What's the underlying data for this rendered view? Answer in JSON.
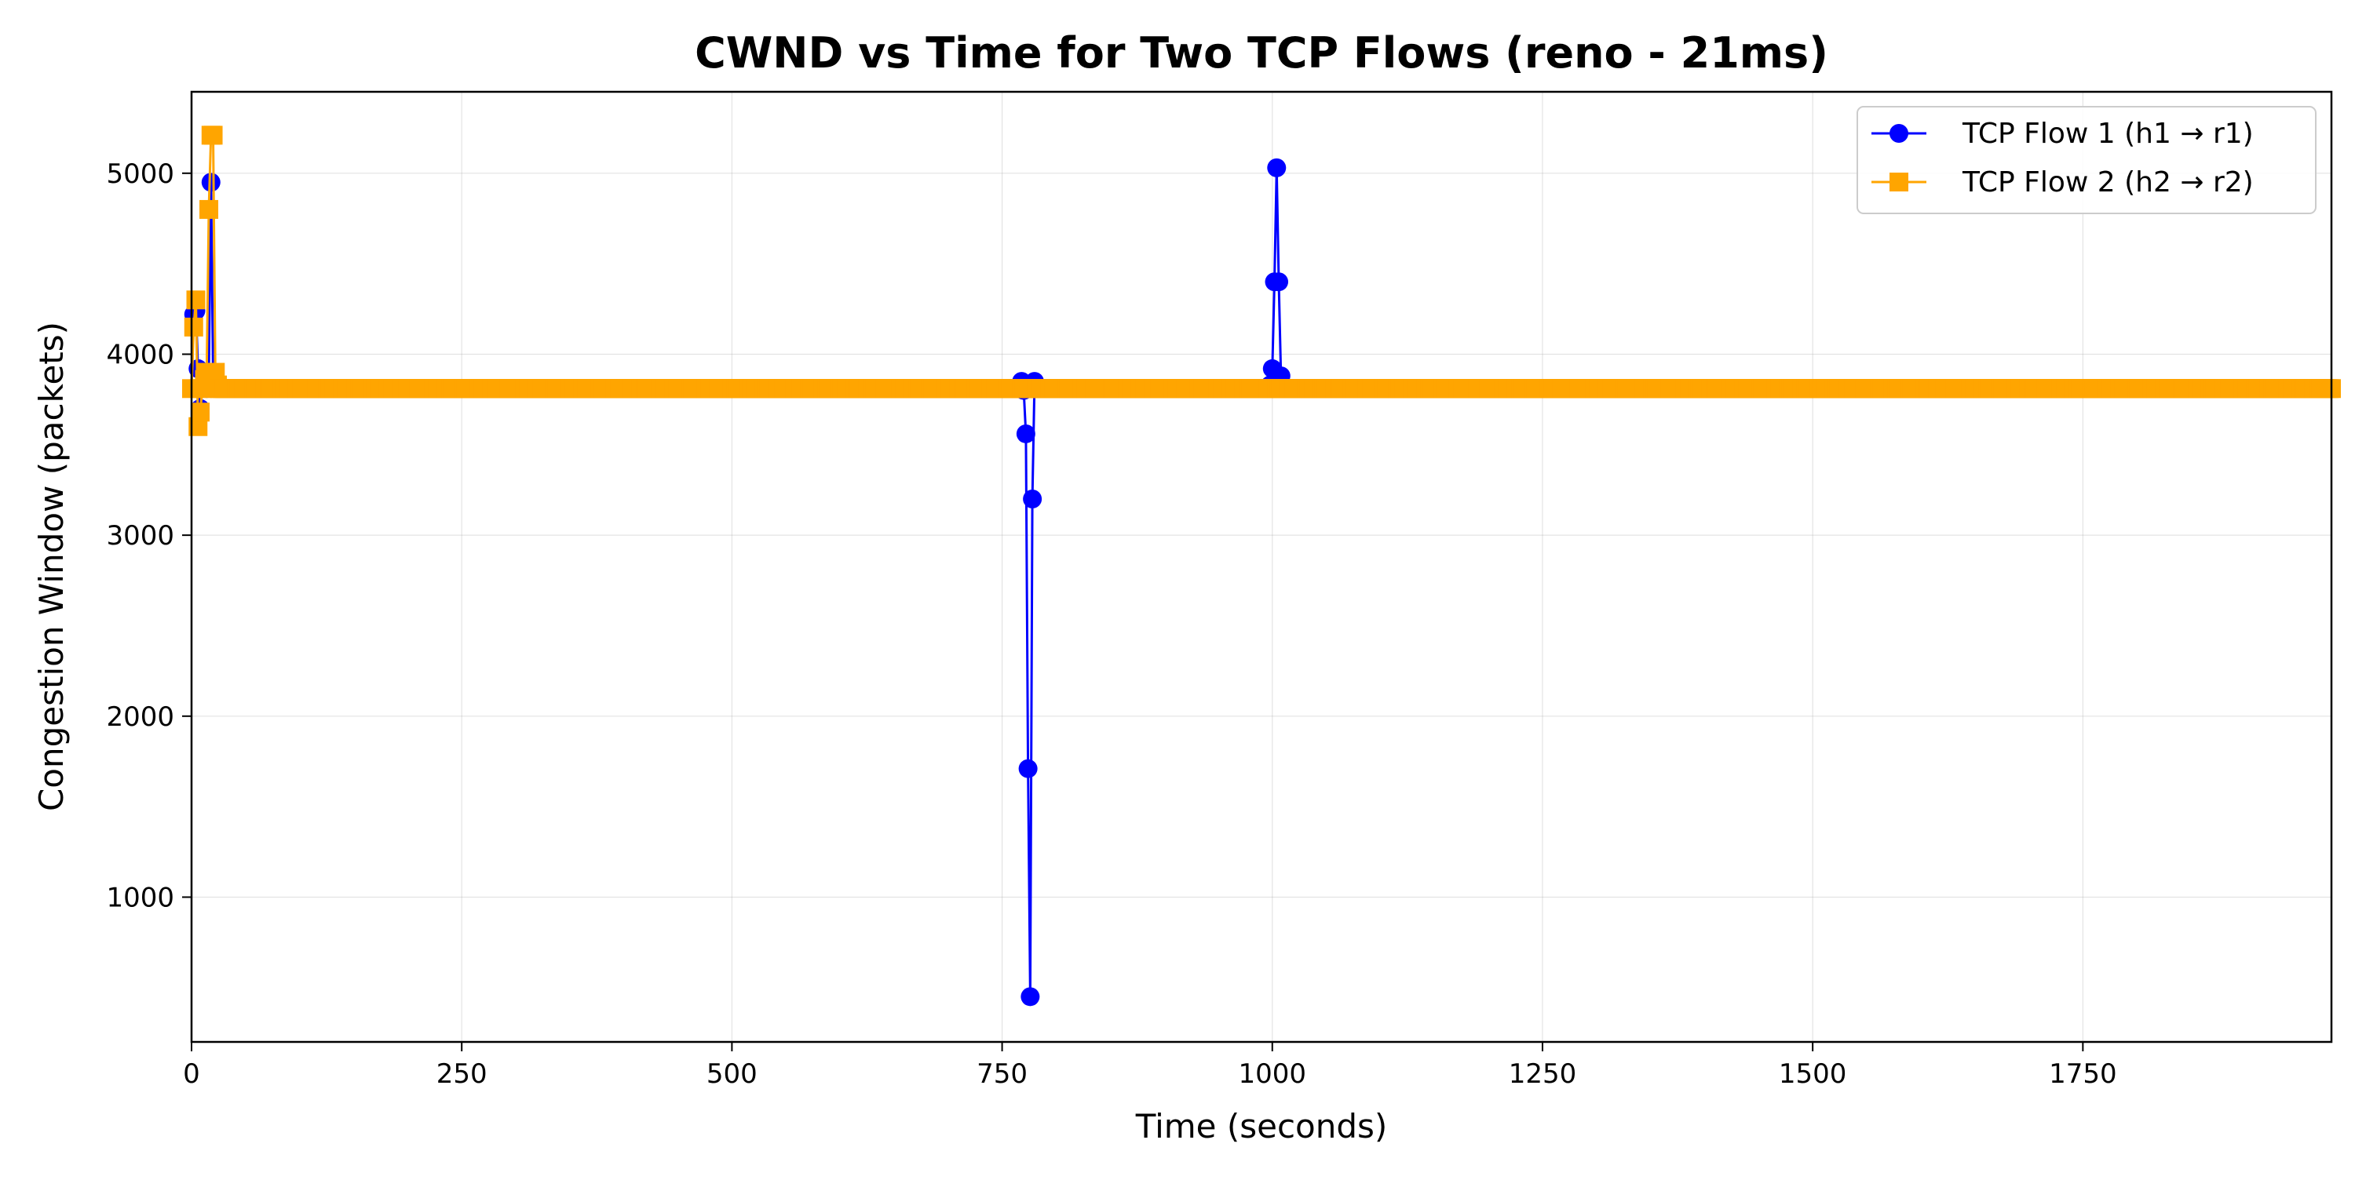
{
  "chart_data": {
    "type": "line",
    "title": "CWND vs Time for Two TCP Flows (reno - 21ms)",
    "xlabel": "Time (seconds)",
    "ylabel": "Congestion Window (packets)",
    "xlim": [
      0,
      1980
    ],
    "ylim": [
      200,
      5450
    ],
    "x_ticks": [
      0,
      250,
      500,
      750,
      1000,
      1250,
      1500,
      1750
    ],
    "y_ticks": [
      1000,
      2000,
      3000,
      4000,
      5000
    ],
    "grid": true,
    "legend_position": "top-right",
    "series": [
      {
        "name": "TCP Flow 1 (h1 → r1)",
        "color": "#0000ff",
        "marker": "circle",
        "x_start": 0,
        "x_end": 1980,
        "x_step": 2,
        "baseline": 3810,
        "overrides": [
          [
            2,
            4220
          ],
          [
            4,
            4240
          ],
          [
            6,
            3920
          ],
          [
            8,
            3700
          ],
          [
            12,
            3860
          ],
          [
            16,
            3880
          ],
          [
            18,
            4950
          ],
          [
            20,
            3860
          ],
          [
            22,
            3830
          ],
          [
            768,
            3850
          ],
          [
            770,
            3800
          ],
          [
            772,
            3560
          ],
          [
            774,
            1710
          ],
          [
            776,
            450
          ],
          [
            778,
            3200
          ],
          [
            780,
            3850
          ],
          [
            998,
            3830
          ],
          [
            1000,
            3920
          ],
          [
            1002,
            4400
          ],
          [
            1004,
            5030
          ],
          [
            1006,
            4400
          ],
          [
            1008,
            3880
          ]
        ]
      },
      {
        "name": "TCP Flow 2 (h2 → r2)",
        "color": "#ffa500",
        "marker": "square",
        "x_start": 0,
        "x_end": 1980,
        "x_step": 2,
        "baseline": 3810,
        "overrides": [
          [
            2,
            4150
          ],
          [
            4,
            4300
          ],
          [
            6,
            3600
          ],
          [
            8,
            3680
          ],
          [
            12,
            3860
          ],
          [
            14,
            3900
          ],
          [
            16,
            4800
          ],
          [
            18,
            5210
          ],
          [
            20,
            5210
          ],
          [
            22,
            3900
          ],
          [
            24,
            3830
          ]
        ]
      }
    ]
  }
}
